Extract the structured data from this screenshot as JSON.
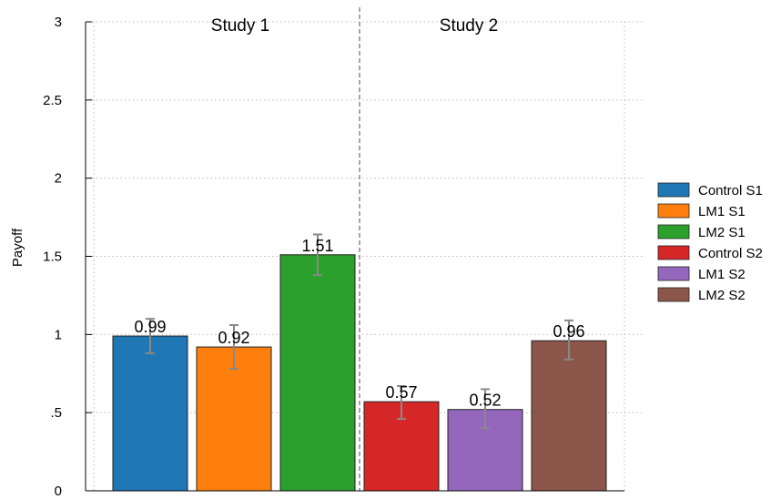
{
  "chart_data": {
    "type": "bar",
    "ylabel": "Payoff",
    "xlabel": "",
    "ylim": [
      0,
      3
    ],
    "yticks": [
      {
        "value": 0,
        "label": "0"
      },
      {
        "value": 0.5,
        "label": ".5"
      },
      {
        "value": 1,
        "label": "1"
      },
      {
        "value": 1.5,
        "label": "1.5"
      },
      {
        "value": 2,
        "label": "2"
      },
      {
        "value": 2.5,
        "label": "2.5"
      },
      {
        "value": 3,
        "label": "3"
      }
    ],
    "grid": true,
    "panels": [
      "Study 1",
      "Study 2"
    ],
    "legend_position": "right",
    "series": [
      {
        "name": "Control S1",
        "panel": 0,
        "value": 0.99,
        "label": "0.99",
        "ci": [
          0.88,
          1.1
        ],
        "color": "#1f77b4"
      },
      {
        "name": "LM1 S1",
        "panel": 0,
        "value": 0.92,
        "label": "0.92",
        "ci": [
          0.78,
          1.06
        ],
        "color": "#ff7f0e"
      },
      {
        "name": "LM2 S1",
        "panel": 0,
        "value": 1.51,
        "label": "1.51",
        "ci": [
          1.38,
          1.64
        ],
        "color": "#2ca02c"
      },
      {
        "name": "Control S2",
        "panel": 1,
        "value": 0.57,
        "label": "0.57",
        "ci": [
          0.46,
          0.67
        ],
        "color": "#d62728"
      },
      {
        "name": "LM1 S2",
        "panel": 1,
        "value": 0.52,
        "label": "0.52",
        "ci": [
          0.4,
          0.65
        ],
        "color": "#9467bd"
      },
      {
        "name": "LM2 S2",
        "panel": 1,
        "value": 0.96,
        "label": "0.96",
        "ci": [
          0.84,
          1.09
        ],
        "color": "#8c564b"
      }
    ]
  }
}
